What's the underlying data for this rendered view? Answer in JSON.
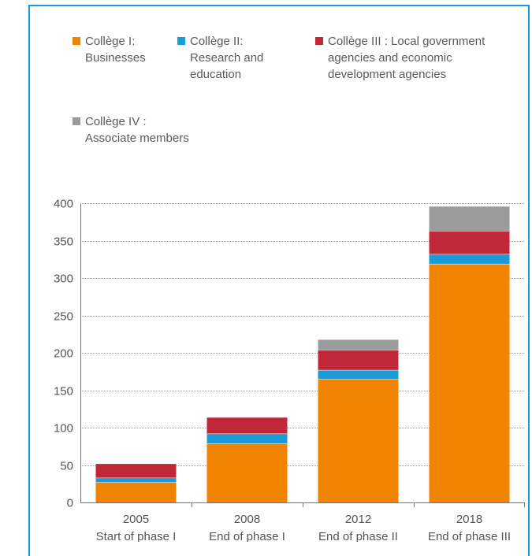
{
  "colors": {
    "frame": "#1a9ad6",
    "grid": "#999999",
    "series": [
      "#f08300",
      "#1a9ad6",
      "#c0283a",
      "#9b9b9b"
    ]
  },
  "chart_data": {
    "type": "bar",
    "stacked": true,
    "categories": [
      "2005",
      "2008",
      "2012",
      "2018"
    ],
    "category_sublabels": [
      "Start of phase I",
      "End of phase I",
      "End of phase II",
      "End of phase III"
    ],
    "series": [
      {
        "name": "Collège I:\nBusinesses",
        "values": [
          27,
          79,
          165,
          319
        ]
      },
      {
        "name": "Collège II:\nResearch and\neducation",
        "values": [
          6,
          13,
          12,
          13
        ]
      },
      {
        "name": "Collège III : Local government\nagencies and economic\ndevelopment agencies",
        "values": [
          19,
          22,
          27,
          31
        ]
      },
      {
        "name": "Collège IV :\nAssociate members",
        "values": [
          0,
          0,
          14,
          33
        ]
      }
    ],
    "yticks": [
      "0",
      "50",
      "100",
      "150",
      "200",
      "250",
      "300",
      "350",
      "400"
    ],
    "ylim": [
      0,
      400
    ],
    "grid": true,
    "legend_position": "top"
  }
}
